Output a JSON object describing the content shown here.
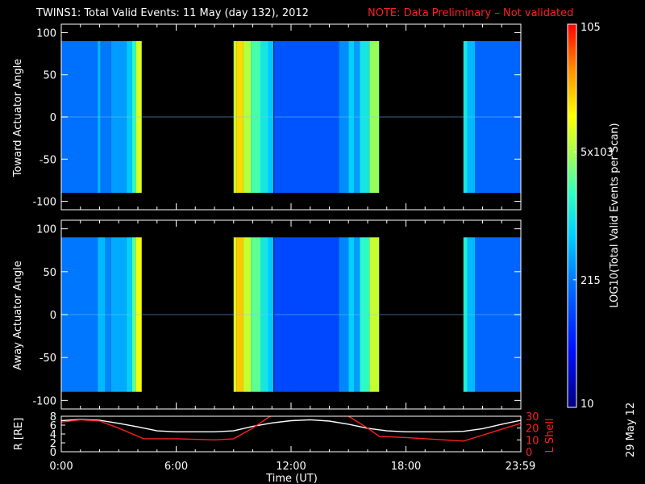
{
  "header": {
    "title": "TWINS1: Total Valid Events: 11 May (day 132), 2012",
    "note": "NOTE: Data Preliminary – Not validated",
    "note_color": "#ff2020"
  },
  "footer": {
    "date_stamp": "29 May 12"
  },
  "chart_data": [
    {
      "type": "heatmap",
      "panel": "top",
      "ylabel": "Toward Actuator Angle",
      "ylim": [
        -110,
        110
      ],
      "yticks": [
        "100",
        "50",
        "0",
        "-50",
        "-100"
      ],
      "data_y_range": [
        -90,
        90
      ],
      "x_hours_range": [
        0,
        24
      ],
      "data_blocks_hours": [
        [
          0.0,
          4.2
        ],
        [
          9.0,
          16.6
        ],
        [
          21.0,
          24.0
        ]
      ],
      "level_bands": [
        {
          "x0": 0.0,
          "x1": 1.9,
          "level": 0.32
        },
        {
          "x0": 1.9,
          "x2": 2.05,
          "x1": 2.05,
          "level": 0.42
        },
        {
          "x0": 2.05,
          "x1": 2.6,
          "level": 0.33
        },
        {
          "x0": 2.6,
          "x1": 3.4,
          "level": 0.38
        },
        {
          "x0": 3.4,
          "x1": 3.7,
          "level": 0.44
        },
        {
          "x0": 3.7,
          "x1": 3.9,
          "level": 0.55
        },
        {
          "x0": 3.9,
          "x1": 4.2,
          "level": 0.72
        },
        {
          "x0": 9.0,
          "x1": 9.15,
          "level": 0.7
        },
        {
          "x0": 9.15,
          "x1": 9.5,
          "level": 0.8
        },
        {
          "x0": 9.5,
          "x1": 9.9,
          "level": 0.68
        },
        {
          "x0": 9.9,
          "x1": 10.4,
          "level": 0.58
        },
        {
          "x0": 10.4,
          "x1": 10.8,
          "level": 0.5
        },
        {
          "x0": 10.8,
          "x1": 11.1,
          "level": 0.44
        },
        {
          "x0": 11.1,
          "x1": 14.5,
          "level": 0.27
        },
        {
          "x0": 14.5,
          "x1": 15.0,
          "level": 0.36
        },
        {
          "x0": 15.0,
          "x1": 15.3,
          "level": 0.45
        },
        {
          "x0": 15.3,
          "x1": 15.6,
          "level": 0.38
        },
        {
          "x0": 15.6,
          "x1": 16.1,
          "level": 0.5
        },
        {
          "x0": 16.1,
          "x1": 16.6,
          "level": 0.65
        },
        {
          "x0": 21.0,
          "x1": 21.2,
          "level": 0.5
        },
        {
          "x0": 21.2,
          "x1": 21.6,
          "level": 0.42
        },
        {
          "x0": 21.6,
          "x1": 24.0,
          "level": 0.3
        }
      ]
    },
    {
      "type": "heatmap",
      "panel": "middle",
      "ylabel": "Away Actuator Angle",
      "ylim": [
        -110,
        110
      ],
      "yticks": [
        "100",
        "50",
        "0",
        "-50",
        "-100"
      ],
      "data_y_range": [
        -90,
        90
      ],
      "x_hours_range": [
        0,
        24
      ],
      "data_blocks_hours": [
        [
          0.0,
          4.2
        ],
        [
          9.0,
          16.6
        ],
        [
          21.0,
          24.0
        ]
      ],
      "level_bands": [
        {
          "x0": 0.0,
          "x1": 1.9,
          "level": 0.33
        },
        {
          "x0": 1.9,
          "x1": 2.3,
          "level": 0.42
        },
        {
          "x0": 2.3,
          "x1": 2.6,
          "level": 0.35
        },
        {
          "x0": 2.6,
          "x1": 3.4,
          "level": 0.4
        },
        {
          "x0": 3.4,
          "x1": 3.7,
          "level": 0.45
        },
        {
          "x0": 3.7,
          "x1": 3.9,
          "level": 0.6
        },
        {
          "x0": 3.9,
          "x1": 4.2,
          "level": 0.75
        },
        {
          "x0": 9.0,
          "x1": 9.15,
          "level": 0.72
        },
        {
          "x0": 9.15,
          "x1": 9.5,
          "level": 0.82
        },
        {
          "x0": 9.5,
          "x1": 9.9,
          "level": 0.7
        },
        {
          "x0": 9.9,
          "x1": 10.4,
          "level": 0.6
        },
        {
          "x0": 10.4,
          "x1": 10.8,
          "level": 0.5
        },
        {
          "x0": 10.8,
          "x1": 11.1,
          "level": 0.44
        },
        {
          "x0": 11.1,
          "x1": 14.5,
          "level": 0.25
        },
        {
          "x0": 14.5,
          "x1": 15.0,
          "level": 0.35
        },
        {
          "x0": 15.0,
          "x1": 15.3,
          "level": 0.45
        },
        {
          "x0": 15.3,
          "x1": 15.6,
          "level": 0.38
        },
        {
          "x0": 15.6,
          "x1": 16.1,
          "level": 0.55
        },
        {
          "x0": 16.1,
          "x1": 16.6,
          "level": 0.7
        },
        {
          "x0": 21.0,
          "x1": 21.2,
          "level": 0.52
        },
        {
          "x0": 21.2,
          "x1": 21.6,
          "level": 0.42
        },
        {
          "x0": 21.6,
          "x1": 24.0,
          "level": 0.3
        }
      ]
    },
    {
      "type": "line",
      "panel": "bottom",
      "xlabel": "Time (UT)",
      "xticks": [
        "0:00",
        "6:00",
        "12:00",
        "18:00",
        "23:59"
      ],
      "xtick_hours": [
        0,
        6,
        12,
        18,
        23.98
      ],
      "xlim": [
        0,
        24
      ],
      "ylabel_left": "R [RE]",
      "ylim_left": [
        0,
        8
      ],
      "yticks_left": [
        "8",
        "6",
        "4",
        "2",
        "0"
      ],
      "ylabel_right": "L Shell",
      "ylim_right": [
        0,
        30
      ],
      "yticks_right": [
        "30",
        "20",
        "10",
        "0"
      ],
      "series": [
        {
          "name": "R",
          "axis": "left",
          "color": "#ffffff",
          "x": [
            0,
            1,
            2,
            3,
            4,
            5,
            6,
            7,
            8,
            9,
            10,
            11,
            12,
            13,
            14,
            15,
            16,
            17,
            18,
            19,
            20,
            21,
            22,
            23,
            24
          ],
          "y": [
            7.0,
            7.3,
            7.1,
            6.4,
            5.6,
            4.7,
            4.5,
            4.5,
            4.5,
            4.7,
            5.7,
            6.5,
            7.0,
            7.2,
            6.9,
            6.2,
            5.3,
            4.7,
            4.5,
            4.5,
            4.5,
            4.6,
            5.2,
            6.2,
            7.1
          ]
        },
        {
          "name": "L Shell",
          "axis": "right",
          "color": "#ff2020",
          "x": [
            0,
            1,
            2,
            3,
            4,
            4.3,
            6,
            8,
            9,
            10,
            11,
            12,
            13,
            14,
            15,
            16,
            16.6,
            18,
            20,
            21,
            22,
            23,
            24
          ],
          "y": [
            25,
            27,
            26,
            20,
            13,
            11,
            11,
            10,
            11,
            20,
            31,
            null,
            null,
            null,
            30,
            20,
            13,
            12,
            10,
            9,
            14,
            19,
            24
          ]
        }
      ]
    },
    {
      "type": "colorbar",
      "label": "LOG10(Total Valid Events per Scan)",
      "ticks": [
        "10",
        "215",
        "5x103",
        "105"
      ],
      "tick_positions": [
        0,
        0.333,
        0.667,
        1
      ]
    }
  ]
}
